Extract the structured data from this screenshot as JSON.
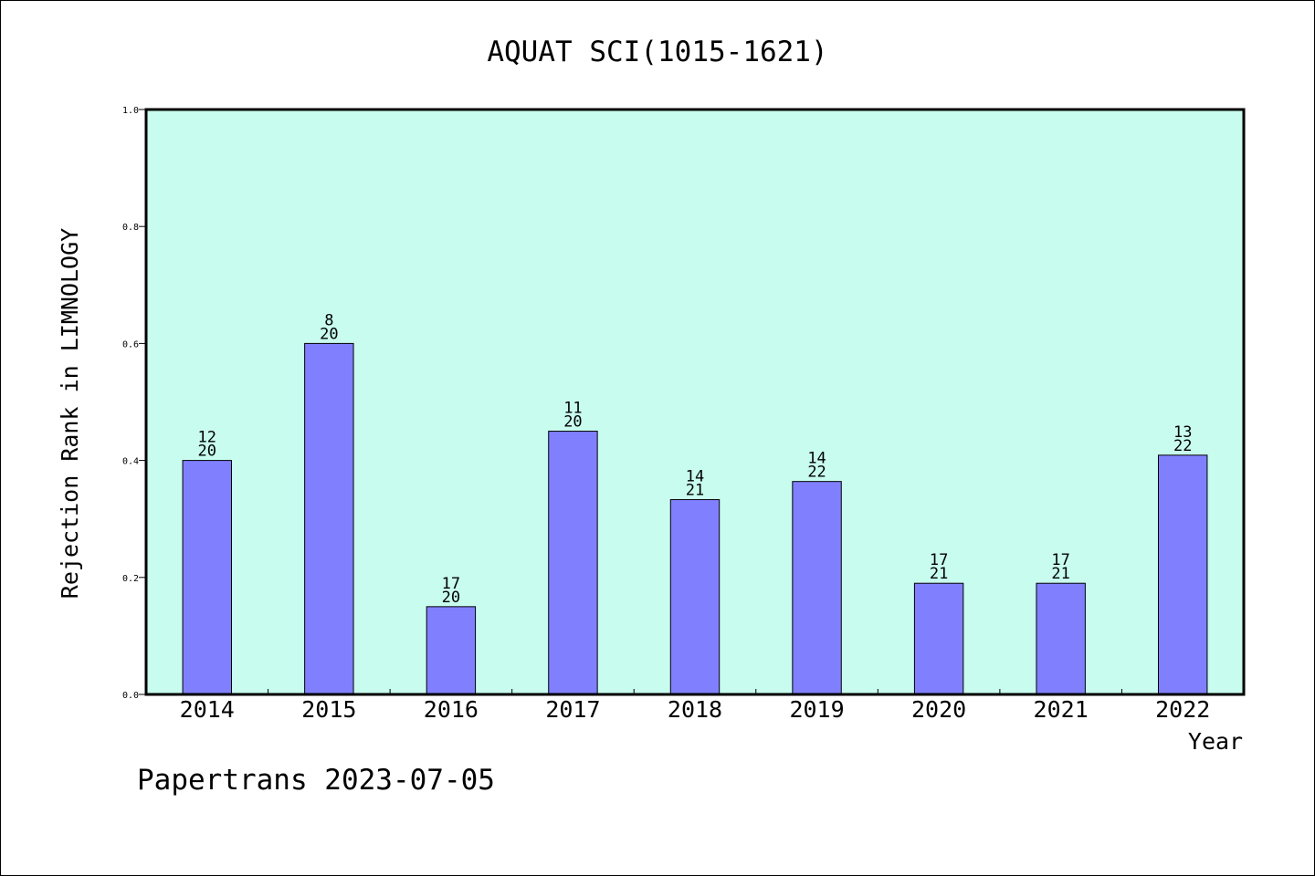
{
  "chart_data": {
    "type": "bar",
    "title": "AQUAT SCI(1015-1621)",
    "xlabel": "Year",
    "ylabel": "Rejection Rank in LIMNOLOGY",
    "ylim": [
      0,
      1.0
    ],
    "yticks": [
      "0.0",
      "0.2",
      "0.4",
      "0.6",
      "0.8",
      "1.0"
    ],
    "categories": [
      "2014",
      "2015",
      "2016",
      "2017",
      "2018",
      "2019",
      "2020",
      "2021",
      "2022"
    ],
    "values": [
      0.4,
      0.6,
      0.15,
      0.45,
      0.333,
      0.364,
      0.19,
      0.19,
      0.409
    ],
    "labels_top": [
      "12",
      "8",
      "17",
      "11",
      "14",
      "14",
      "17",
      "17",
      "13"
    ],
    "labels_bottom": [
      "20",
      "20",
      "20",
      "20",
      "21",
      "22",
      "21",
      "21",
      "22"
    ],
    "grid": false,
    "colors": {
      "plot_bg": "#c8fcee",
      "bar": "#8080ff"
    }
  },
  "footer": "Papertrans 2023-07-05"
}
